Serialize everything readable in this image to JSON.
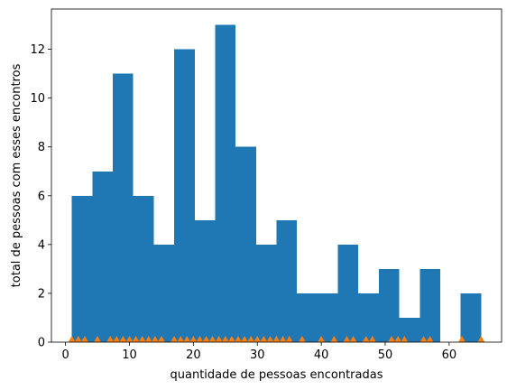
{
  "chart_data": {
    "type": "bar",
    "xlabel": "quantidade de pessoas encontradas",
    "ylabel": "total de pessoas com esses encontros",
    "xlim": [
      -2.2,
      68.2
    ],
    "ylim": [
      0,
      13.65
    ],
    "xticks": [
      0,
      10,
      20,
      30,
      40,
      50,
      60
    ],
    "yticks": [
      0,
      2,
      4,
      6,
      8,
      10,
      12
    ],
    "grid": false,
    "legend": "none",
    "bar_color": "#1f77b4",
    "marker_color": "#ff7f0e",
    "bins": [
      {
        "x0": 1.0,
        "x1": 4.2,
        "count": 6
      },
      {
        "x0": 4.2,
        "x1": 7.4,
        "count": 7
      },
      {
        "x0": 7.4,
        "x1": 10.6,
        "count": 11
      },
      {
        "x0": 10.6,
        "x1": 13.8,
        "count": 6
      },
      {
        "x0": 13.8,
        "x1": 17.0,
        "count": 4
      },
      {
        "x0": 17.0,
        "x1": 20.2,
        "count": 12
      },
      {
        "x0": 20.2,
        "x1": 23.4,
        "count": 5
      },
      {
        "x0": 23.4,
        "x1": 26.6,
        "count": 13
      },
      {
        "x0": 26.6,
        "x1": 29.8,
        "count": 8
      },
      {
        "x0": 29.8,
        "x1": 33.0,
        "count": 4
      },
      {
        "x0": 33.0,
        "x1": 36.2,
        "count": 5
      },
      {
        "x0": 36.2,
        "x1": 39.4,
        "count": 2
      },
      {
        "x0": 39.4,
        "x1": 42.6,
        "count": 2
      },
      {
        "x0": 42.6,
        "x1": 45.8,
        "count": 4
      },
      {
        "x0": 45.8,
        "x1": 49.0,
        "count": 2
      },
      {
        "x0": 49.0,
        "x1": 52.2,
        "count": 3
      },
      {
        "x0": 52.2,
        "x1": 55.4,
        "count": 1
      },
      {
        "x0": 55.4,
        "x1": 58.6,
        "count": 3
      },
      {
        "x0": 58.6,
        "x1": 61.8,
        "count": 0
      },
      {
        "x0": 61.8,
        "x1": 65.0,
        "count": 2
      }
    ],
    "markers_x": [
      1,
      2,
      3,
      5,
      7,
      8,
      9,
      10,
      11,
      12,
      13,
      14,
      15,
      17,
      18,
      19,
      20,
      21,
      22,
      23,
      24,
      25,
      26,
      27,
      28,
      29,
      30,
      31,
      32,
      33,
      34,
      35,
      37,
      40,
      42,
      44,
      45,
      47,
      48,
      51,
      52,
      53,
      56,
      57,
      62,
      65
    ]
  }
}
